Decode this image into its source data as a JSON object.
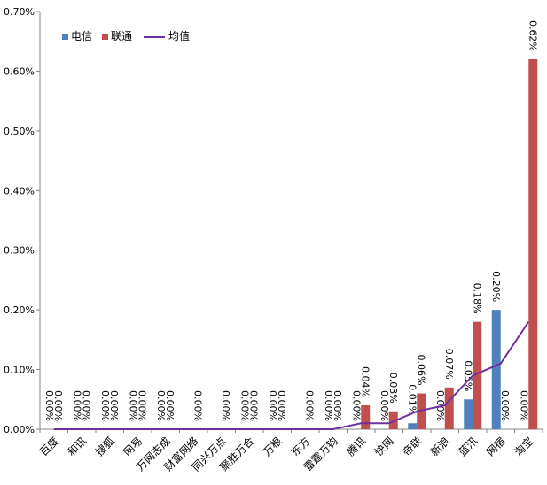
{
  "chart_data": {
    "type": "bar",
    "title": "",
    "xlabel": "",
    "ylabel": "",
    "ylim": [
      0,
      0.7
    ],
    "y_ticks": [
      "0.00%",
      "0.10%",
      "0.20%",
      "0.30%",
      "0.40%",
      "0.50%",
      "0.60%",
      "0.70%"
    ],
    "grid": false,
    "legend": "top-left",
    "categories": [
      "百度",
      "和讯",
      "搜狐",
      "网易",
      "万网志成",
      "财富网络",
      "同兴万点",
      "聚胜万合",
      "万根",
      "东方",
      "雷霆万钧",
      "腾讯",
      "快网",
      "帝联",
      "新浪",
      "蓝汛",
      "网宿",
      "淘宝"
    ],
    "series": [
      {
        "name": "电信",
        "kind": "bar",
        "color": "#4F81BD",
        "values": [
          0,
          0,
          0,
          0,
          0,
          0,
          0,
          0,
          0,
          0,
          0,
          0,
          0,
          0.01,
          0,
          0.05,
          0.2,
          0
        ],
        "labels": [
          "0.00%",
          "0.00%",
          "0.00%",
          "0.00%",
          "0.00%",
          "",
          "",
          "0.00%",
          "0.00%",
          "",
          "0.00%",
          "0.00%",
          "0.00%",
          "0.01%",
          "0.00%",
          "0.05%",
          "0.20%",
          "0.00%"
        ]
      },
      {
        "name": "联通",
        "kind": "bar",
        "color": "#C0504D",
        "values": [
          0,
          0,
          0,
          0,
          0,
          0,
          0,
          0,
          0,
          0,
          0,
          0.04,
          0.03,
          0.06,
          0.07,
          0.18,
          0,
          0.62
        ],
        "labels": [
          "0.00%",
          "0.00%",
          "0.00%",
          "0.00%",
          "0.00%",
          "0.00%",
          "0.00%",
          "0.00%",
          "0.00%",
          "0.00%",
          "0.00%",
          "0.04%",
          "0.03%",
          "0.06%",
          "0.07%",
          "0.18%",
          "0.00%",
          "0.62%"
        ]
      },
      {
        "name": "均值",
        "kind": "line",
        "color": "#7030A0",
        "values": [
          0,
          0,
          0,
          0,
          0,
          0,
          0,
          0,
          0,
          0,
          0,
          0.01,
          0.01,
          0.03,
          0.04,
          0.09,
          0.11,
          0.18
        ]
      }
    ]
  }
}
